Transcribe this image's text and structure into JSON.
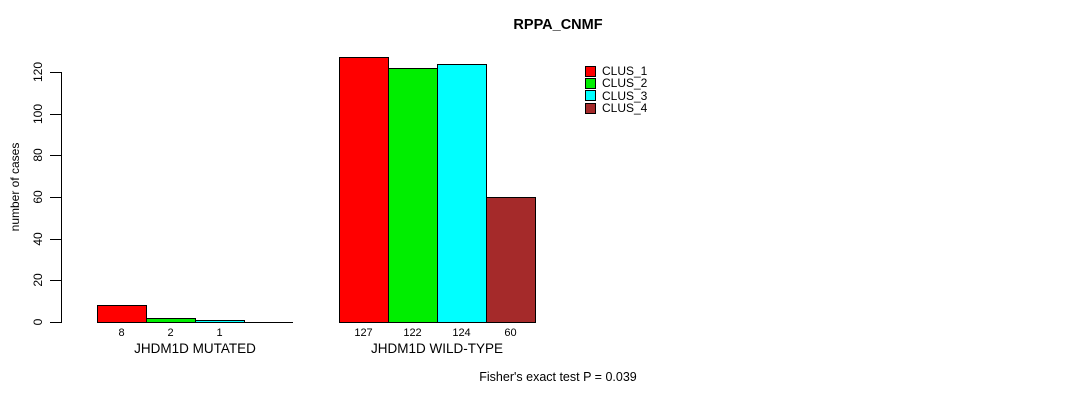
{
  "title": "RPPA_CNMF",
  "footer": "Fisher's exact test P = 0.039",
  "chart_data": {
    "type": "bar",
    "title": "RPPA_CNMF",
    "xlabel": "",
    "ylabel": "number of cases",
    "ylim": [
      0,
      120
    ],
    "y_ticks": [
      0,
      20,
      40,
      60,
      80,
      100,
      120
    ],
    "grid": false,
    "legend_position": "top-right",
    "categories": [
      "JHDM1D MUTATED",
      "JHDM1D WILD-TYPE"
    ],
    "series": [
      {
        "name": "CLUS_1",
        "color": "#ff0000",
        "values": [
          8,
          127
        ]
      },
      {
        "name": "CLUS_2",
        "color": "#00ee00",
        "values": [
          2,
          122
        ]
      },
      {
        "name": "CLUS_3",
        "color": "#00ffff",
        "values": [
          1,
          124
        ]
      },
      {
        "name": "CLUS_4",
        "color": "#a52a2a",
        "values": [
          0,
          60
        ]
      }
    ],
    "bar_value_labels": [
      [
        8,
        2,
        1,
        null
      ],
      [
        127,
        122,
        124,
        60
      ]
    ],
    "annotation": "Fisher's exact test P = 0.039"
  }
}
